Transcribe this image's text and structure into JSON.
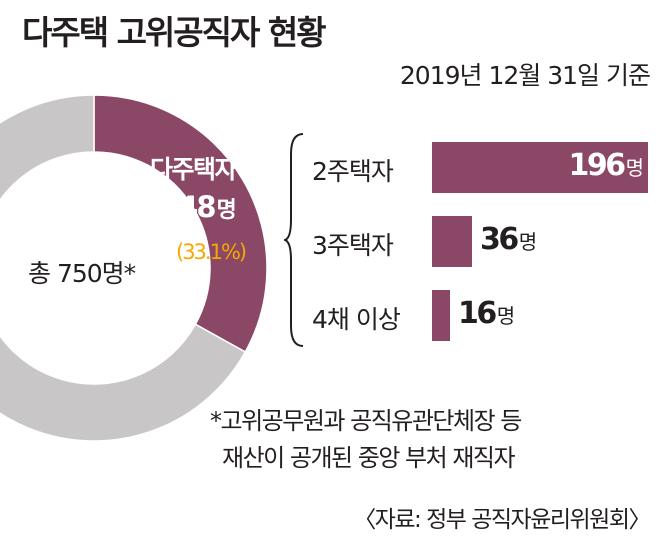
{
  "title": "다주택 고위공직자 현황",
  "date": "2019년 12월 31일 기준",
  "colors": {
    "accent": "#8a4766",
    "grey": "#c8c6c7",
    "highlight_pct": "#f5a800"
  },
  "donut": {
    "total_label": "총 750명*",
    "highlight_name": "다주택자",
    "highlight_count": "248",
    "highlight_unit": "명",
    "highlight_pct": "(33.1%)"
  },
  "chart_data": [
    {
      "type": "pie",
      "total": 750,
      "slices": [
        {
          "label": "다주택자",
          "value": 248,
          "percent": 33.1
        },
        {
          "label": "",
          "value": 502
        }
      ]
    },
    {
      "type": "bar",
      "categories": [
        "2주택자",
        "3주택자",
        "4채 이상"
      ],
      "values": [
        196,
        36,
        16
      ],
      "value_labels": [
        "196",
        "36",
        "16"
      ],
      "unit": "명",
      "xlim": [
        0,
        196
      ]
    }
  ],
  "footnote": {
    "line1": "*고위공무원과 공직유관단체장 등",
    "line2": "재산이 공개된 중앙 부처 재직자"
  },
  "source": "〈자료: 정부 공직자윤리위원회〉"
}
